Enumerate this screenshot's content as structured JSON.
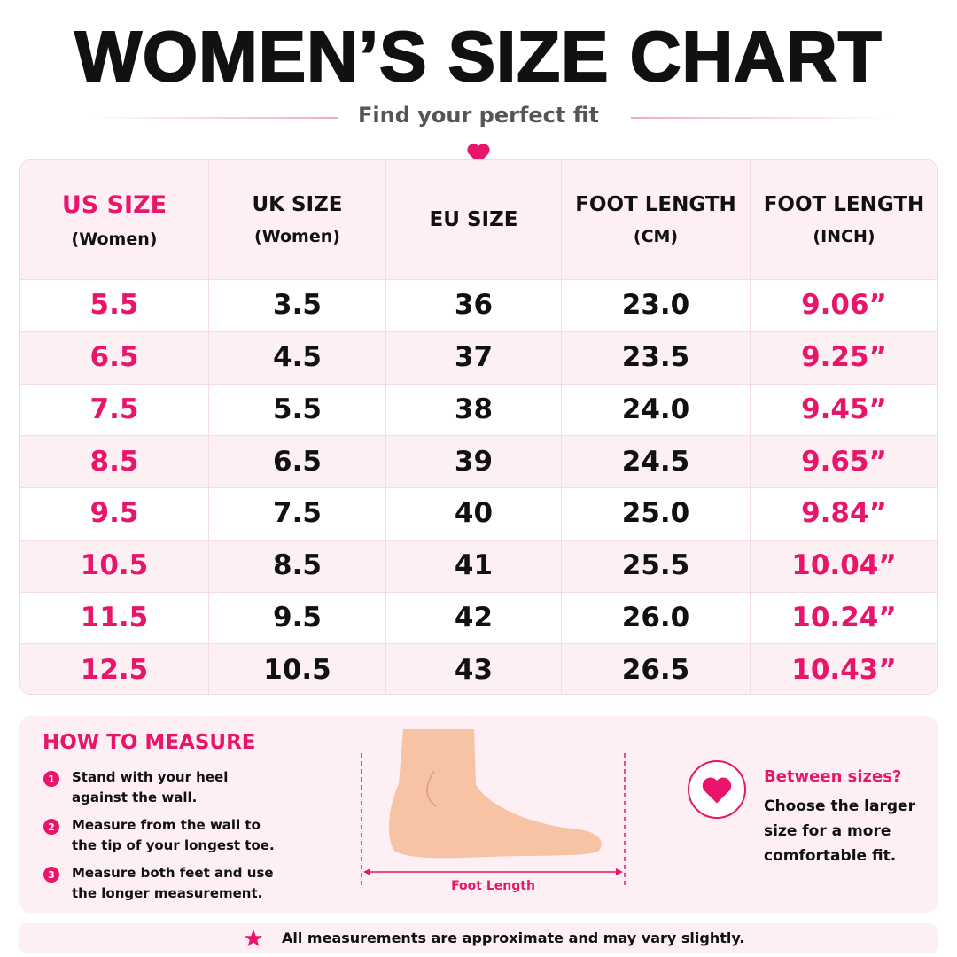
{
  "header": {
    "title": "WOMEN’S SIZE CHART",
    "subtitle": "Find your perfect fit"
  },
  "table": {
    "columns": [
      {
        "label": "US SIZE",
        "sub": "(Women)"
      },
      {
        "label": "UK SIZE",
        "sub": "(Women)"
      },
      {
        "label": "EU SIZE"
      },
      {
        "label": "FOOT LENGTH",
        "sub": "(CM)"
      },
      {
        "label": "FOOT LENGTH",
        "sub": "(INCH)"
      }
    ],
    "rows": [
      [
        "5.5",
        "3.5",
        "36",
        "23.0",
        "9.06”"
      ],
      [
        "6.5",
        "4.5",
        "37",
        "23.5",
        "9.25”"
      ],
      [
        "7.5",
        "5.5",
        "38",
        "24.0",
        "9.45”"
      ],
      [
        "8.5",
        "6.5",
        "39",
        "24.5",
        "9.65”"
      ],
      [
        "9.5",
        "7.5",
        "40",
        "25.0",
        "9.84”"
      ],
      [
        "10.5",
        "8.5",
        "41",
        "25.5",
        "10.04”"
      ],
      [
        "11.5",
        "9.5",
        "42",
        "26.0",
        "10.24”"
      ],
      [
        "12.5",
        "10.5",
        "43",
        "26.5",
        "10.43”"
      ]
    ]
  },
  "how_to": {
    "title": "HOW TO MEASURE",
    "steps": [
      {
        "number": "1",
        "text": "Stand with your heel against the wall."
      },
      {
        "number": "2",
        "text": "Measure from the wall to the tip of your longest toe."
      },
      {
        "number": "3",
        "text": "Measure both feet and use the longer measurement."
      }
    ],
    "diagram_label": "Foot Length"
  },
  "tip": {
    "title": "Between sizes?",
    "text": "Choose the larger size for a more comfortable fit."
  },
  "footer": {
    "note": "All measurements are approximate and may vary slightly."
  }
}
